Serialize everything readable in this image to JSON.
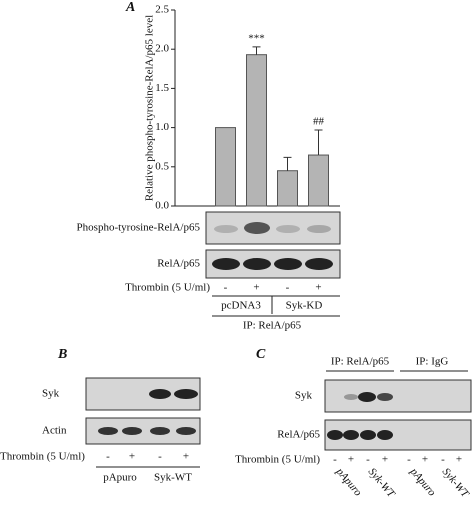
{
  "chart_data": {
    "type": "bar",
    "panel_label": "A",
    "y_label": "Relative phospho-tyrosine-RelA/p65 level",
    "categories": [
      "-",
      "+",
      "-",
      "+"
    ],
    "values": [
      1.0,
      1.93,
      0.45,
      0.65
    ],
    "errors": [
      null,
      0.1,
      0.17,
      0.32
    ],
    "value_annotations": [
      null,
      "***",
      null,
      "##"
    ],
    "color": "#b4b4b4",
    "ylim": [
      0,
      2.5
    ],
    "yticks": [
      {
        "value": 0,
        "label": "0.0"
      },
      0.5,
      {
        "value": 1,
        "label": "1.0"
      },
      1.5,
      {
        "value": 2,
        "label": "2.0"
      },
      2.5
    ],
    "blot_rows": [
      "Phospho-tyrosine-RelA/p65",
      "RelA/p65"
    ],
    "treatment_label": "Thrombin (5 U/ml)",
    "groups": [
      "pcDNA3",
      "Syk-KD"
    ],
    "ip_label": "IP: RelA/p65"
  },
  "panels": {
    "B": {
      "panel_label": "B",
      "blot_rows": [
        "Syk",
        "Actin"
      ],
      "treatment_label": "Thrombin (5 U/ml)",
      "signs": [
        "-",
        "+",
        "-",
        "+"
      ],
      "groups": [
        "pApuro",
        "Syk-WT"
      ]
    },
    "C": {
      "panel_label": "C",
      "ip_labels": [
        "IP: RelA/p65",
        "IP: IgG"
      ],
      "blot_rows": [
        "Syk",
        "RelA/p65"
      ],
      "treatment_label": "Thrombin (5 U/ml)",
      "signs": [
        "-",
        "+",
        "-",
        "+",
        "-",
        "+",
        "-",
        "+"
      ],
      "groups": [
        "pApuro",
        "Syk-WT",
        "pApuro",
        "Syk-WT"
      ]
    }
  }
}
